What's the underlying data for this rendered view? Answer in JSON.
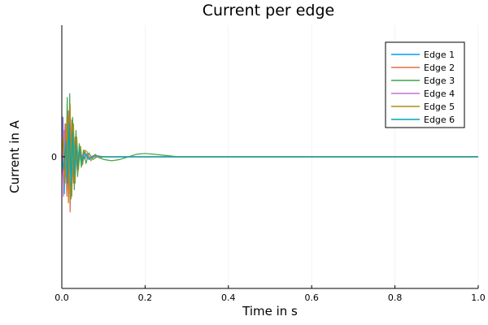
{
  "chart_data": {
    "type": "line",
    "title": "Current per edge",
    "xlabel": "Time in s",
    "ylabel": "Current in A",
    "xlim": [
      0,
      1
    ],
    "ylim": [
      -1,
      1
    ],
    "x_ticks": [
      "0.0",
      "0.2",
      "0.4",
      "0.6",
      "0.8",
      "1.0"
    ],
    "y_ticks": [
      "0"
    ],
    "grid": true,
    "legend_position": "top-right",
    "series": [
      {
        "name": "Edge 1",
        "color": "#009af9",
        "x": [
          0,
          0.003,
          0.006,
          0.009,
          0.012,
          0.015,
          0.018,
          0.021,
          0.024,
          0.028,
          0.032,
          0.036,
          0.04,
          0.045,
          0.05,
          0.06,
          0.07,
          0.08,
          0.1,
          0.15,
          1.0
        ],
        "y": [
          0,
          0.3,
          -0.28,
          0.25,
          -0.22,
          0.2,
          -0.18,
          0.14,
          -0.12,
          0.1,
          -0.08,
          0.06,
          -0.05,
          0.04,
          -0.03,
          0.02,
          -0.01,
          0.005,
          0,
          0,
          0
        ]
      },
      {
        "name": "Edge 2",
        "color": "#e26f46",
        "x": [
          0,
          0.004,
          0.008,
          0.012,
          0.016,
          0.02,
          0.024,
          0.028,
          0.032,
          0.037,
          0.042,
          0.048,
          0.055,
          0.065,
          0.075,
          0.09,
          0.12,
          1.0
        ],
        "y": [
          0,
          -0.2,
          0.25,
          -0.3,
          0.35,
          -0.42,
          0.28,
          -0.2,
          0.15,
          -0.1,
          0.08,
          -0.05,
          0.04,
          -0.02,
          0.01,
          0,
          0,
          0
        ]
      },
      {
        "name": "Edge 3",
        "color": "#3da44d",
        "x": [
          0,
          0.005,
          0.01,
          0.013,
          0.016,
          0.019,
          0.022,
          0.026,
          0.03,
          0.034,
          0.038,
          0.042,
          0.047,
          0.052,
          0.058,
          0.065,
          0.075,
          0.085,
          0.1,
          0.12,
          0.14,
          0.16,
          0.18,
          0.2,
          0.22,
          0.25,
          0.28,
          0.32,
          1.0
        ],
        "y": [
          0,
          0.1,
          -0.15,
          0.45,
          -0.3,
          0.48,
          -0.32,
          0.3,
          -0.25,
          0.2,
          -0.15,
          0.1,
          -0.08,
          0.05,
          -0.05,
          0.03,
          -0.02,
          0,
          -0.02,
          -0.03,
          -0.02,
          0,
          0.02,
          0.025,
          0.02,
          0.01,
          0,
          0,
          0
        ]
      },
      {
        "name": "Edge 4",
        "color": "#c271d2",
        "x": [
          0,
          0.002,
          0.004,
          0.006,
          0.009,
          0.012,
          0.015,
          0.018,
          0.022,
          0.026,
          0.03,
          0.035,
          0.04,
          0.05,
          0.06,
          0.08,
          0.1,
          1.0
        ],
        "y": [
          0,
          0.3,
          -0.3,
          0.2,
          -0.15,
          0.12,
          -0.1,
          0.08,
          -0.06,
          0.05,
          -0.04,
          0.03,
          -0.02,
          0.015,
          -0.01,
          0,
          0,
          0
        ]
      },
      {
        "name": "Edge 5",
        "color": "#ac8d18",
        "x": [
          0,
          0.004,
          0.008,
          0.012,
          0.016,
          0.02,
          0.024,
          0.028,
          0.032,
          0.036,
          0.04,
          0.045,
          0.05,
          0.055,
          0.06,
          0.07,
          0.08,
          0.09,
          0.1,
          0.12,
          1.0
        ],
        "y": [
          0,
          0.15,
          -0.2,
          0.3,
          -0.35,
          0.4,
          -0.3,
          0.25,
          -0.2,
          0.15,
          -0.1,
          0.08,
          -0.06,
          0.05,
          0.04,
          -0.03,
          0.02,
          -0.01,
          0,
          0,
          0
        ]
      },
      {
        "name": "Edge 6",
        "color": "#00a9ad",
        "x": [
          0,
          0.005,
          0.01,
          0.014,
          0.018,
          0.022,
          0.026,
          0.03,
          0.034,
          0.038,
          0.043,
          0.048,
          0.055,
          0.065,
          0.08,
          0.1,
          1.0
        ],
        "y": [
          0,
          -0.1,
          0.12,
          -0.2,
          0.25,
          -0.22,
          0.18,
          -0.14,
          0.1,
          -0.08,
          0.06,
          -0.04,
          0.03,
          -0.02,
          0.01,
          0,
          0
        ]
      }
    ]
  }
}
